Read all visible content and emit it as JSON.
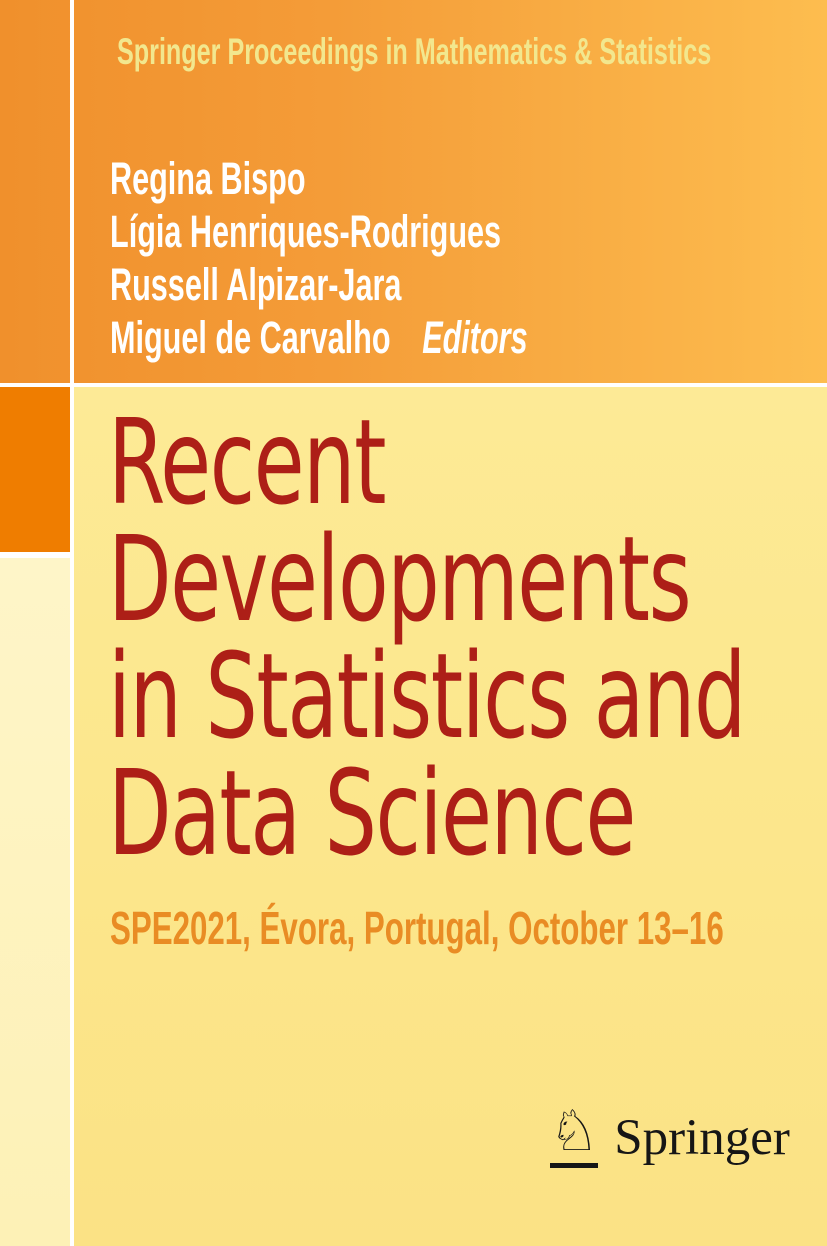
{
  "series": {
    "label": "Springer Proceedings in Mathematics & Statistics"
  },
  "editors": {
    "names": [
      "Regina Bispo",
      "Lígia Henriques-Rodrigues",
      "Russell Alpizar-Jara",
      "Miguel de Carvalho"
    ],
    "role_label": "Editors"
  },
  "title": {
    "lines": [
      "Recent",
      "Developments",
      "in Statistics and",
      "Data Science"
    ]
  },
  "subtitle": "SPE2021, Évora, Portugal, October 13–16",
  "publisher": {
    "name": "Springer",
    "logo_icon": "springer-horse-knight-icon",
    "knight_glyph": "♘"
  },
  "colors": {
    "header_gradient_left": "#F0902C",
    "header_gradient_right": "#FDBD4F",
    "series_text": "#F2E78E",
    "editor_text": "#FFFFFF",
    "main_background": "#FCE78D",
    "left_pale_strip": "#FDF2BD",
    "accent_square": "#EF7D00",
    "title_red": "#AD1F17",
    "subtitle_orange": "#E98C24",
    "divider_white": "#FFFFFF",
    "logo_black": "#161616"
  }
}
